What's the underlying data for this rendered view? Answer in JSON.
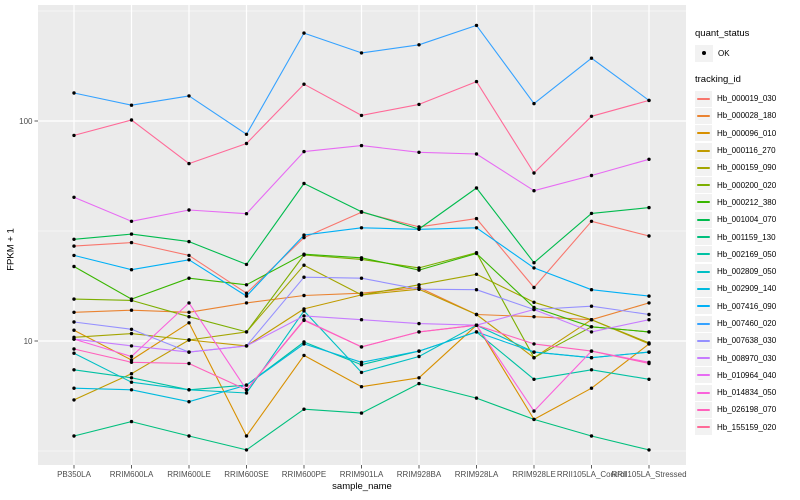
{
  "figure": {
    "background": "#FFFFFF",
    "panel_background": "#EBEBEB",
    "gridline_color": "#FFFFFF",
    "tick_label_color": "#4D4D4D",
    "point_color": "#000000"
  },
  "legend": {
    "quant_status_title": "quant_status",
    "quant_status_items": [
      {
        "label": "OK",
        "symbol": "point",
        "color": "#000000"
      }
    ],
    "tracking_id_title": "tracking_id"
  },
  "chart_data": {
    "type": "line",
    "title": "",
    "xlabel": "sample_name",
    "ylabel": "FPKM + 1",
    "y_scale": "log10",
    "ylim": [
      2.8,
      320
    ],
    "y_major_breaks": [
      100,
      10
    ],
    "y_major_labels": [
      "100",
      "10"
    ],
    "y_minor_breaks": [
      316.23,
      31.62,
      3.162
    ],
    "grid": true,
    "legend_position": "right",
    "marker": "black-point",
    "categories": [
      "PB350LA",
      "RRIM600LA",
      "RRIM600LE",
      "RRIM600SE",
      "RRIM600PE",
      "RRIM901LA",
      "RRIM928BA",
      "RRIM928LA",
      "RRIM928LE",
      "RRII105LA_Control",
      "RRII105LA_Stressed"
    ],
    "series": [
      {
        "name": "Hb_000019_030",
        "color": "#F8766D",
        "values": [
          27,
          28,
          24.5,
          16.5,
          29.5,
          38.5,
          33,
          36,
          17.5,
          35,
          30
        ]
      },
      {
        "name": "Hb_000028_180",
        "color": "#EA8331",
        "values": [
          13.5,
          13.8,
          13.5,
          14.9,
          16.1,
          16.5,
          17.5,
          13.2,
          12.9,
          12.5,
          14.9
        ]
      },
      {
        "name": "Hb_000096_010",
        "color": "#D89000",
        "values": [
          11.2,
          8.2,
          12.1,
          3.7,
          8.6,
          6.2,
          6.8,
          11.8,
          4.4,
          6.1,
          9.7
        ]
      },
      {
        "name": "Hb_000116_270",
        "color": "#C09B00",
        "values": [
          5.4,
          7.1,
          10.1,
          9.5,
          14,
          16.2,
          17.2,
          13.2,
          8.4,
          12.5,
          9.7
        ]
      },
      {
        "name": "Hb_000159_090",
        "color": "#A3A500",
        "values": [
          10.4,
          10.8,
          10.1,
          11,
          22.1,
          16.2,
          18,
          20.1,
          15,
          12.5,
          9.8
        ]
      },
      {
        "name": "Hb_000200_020",
        "color": "#7CAE00",
        "values": [
          15.5,
          15.3,
          12.9,
          11,
          24.6,
          23.5,
          21.5,
          25.2,
          8.4,
          11.6,
          11
        ]
      },
      {
        "name": "Hb_000212_380",
        "color": "#39B600",
        "values": [
          21.8,
          15.5,
          19.3,
          18,
          24.8,
          23.9,
          21,
          25,
          14.2,
          11.6,
          11
        ]
      },
      {
        "name": "Hb_001004_070",
        "color": "#00BB4E",
        "values": [
          29,
          30.6,
          28.3,
          22.3,
          52,
          38.7,
          32.3,
          49.6,
          22.7,
          38,
          40.4
        ]
      },
      {
        "name": "Hb_001159_130",
        "color": "#00BF7D",
        "values": [
          3.7,
          4.3,
          3.7,
          3.2,
          4.9,
          4.7,
          6.4,
          5.5,
          4.4,
          3.7,
          3.2
        ]
      },
      {
        "name": "Hb_002169_050",
        "color": "#00C1A3",
        "values": [
          7.4,
          6.8,
          6,
          6.3,
          9.9,
          7.8,
          9,
          11,
          6.7,
          7.4,
          6.7
        ]
      },
      {
        "name": "Hb_002809_050",
        "color": "#00BFC4",
        "values": [
          8.8,
          6.5,
          6,
          5.8,
          13.7,
          7.2,
          8.5,
          11.8,
          8.9,
          8.4,
          8.9
        ]
      },
      {
        "name": "Hb_002909_140",
        "color": "#00BADE",
        "values": [
          6.1,
          6,
          5.3,
          6.3,
          9.7,
          8,
          9,
          11,
          8.9,
          8.4,
          8.9
        ]
      },
      {
        "name": "Hb_007416_090",
        "color": "#00B0F6",
        "values": [
          24.5,
          21.1,
          23.4,
          16,
          30.3,
          32.7,
          32.2,
          32.7,
          21.5,
          17.1,
          16
        ]
      },
      {
        "name": "Hb_007460_020",
        "color": "#35A2FF",
        "values": [
          134,
          118,
          130,
          87,
          251,
          204,
          222,
          272,
          120,
          193,
          124
        ]
      },
      {
        "name": "Hb_007638_030",
        "color": "#9590FF",
        "values": [
          12.2,
          11.3,
          8.9,
          9.5,
          19.5,
          19.3,
          17.2,
          17.1,
          13.9,
          14.4,
          13.2
        ]
      },
      {
        "name": "Hb_008970_030",
        "color": "#C77CFF",
        "values": [
          10.2,
          9.5,
          8.9,
          9.5,
          13,
          12.5,
          12,
          11.8,
          13.9,
          11,
          12.5
        ]
      },
      {
        "name": "Hb_010964_040",
        "color": "#E76BF3",
        "values": [
          45,
          35,
          39.4,
          37.9,
          72.6,
          77.3,
          72.1,
          70.8,
          48.2,
          56.5,
          67
        ]
      },
      {
        "name": "Hb_014834_050",
        "color": "#FA62DB",
        "values": [
          10.2,
          8.5,
          14.9,
          6,
          12.5,
          9.4,
          11,
          11.8,
          4.8,
          9,
          8
        ]
      },
      {
        "name": "Hb_026198_070",
        "color": "#FF62BC",
        "values": [
          9.2,
          8,
          7.9,
          6,
          12.4,
          9.4,
          11,
          11.8,
          9.7,
          9,
          7.9
        ]
      },
      {
        "name": "Hb_155159_020",
        "color": "#FF6A98",
        "values": [
          86,
          101,
          64,
          79,
          147,
          106,
          119,
          151,
          58,
          105,
          124
        ]
      }
    ]
  }
}
